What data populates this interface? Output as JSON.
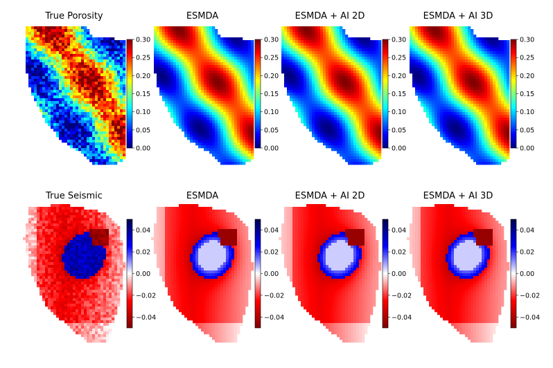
{
  "chart_data": [
    {
      "type": "heatmap",
      "row": "porosity",
      "colormap": "jet",
      "panels": [
        {
          "title": "True Porosity",
          "variant": "noisy"
        },
        {
          "title": "ESMDA",
          "variant": "smooth"
        },
        {
          "title": "ESMDA + AI 2D",
          "variant": "smooth"
        },
        {
          "title": "ESMDA + AI 3D",
          "variant": "smooth"
        }
      ],
      "colorbar": {
        "vmin": 0.0,
        "vmax": 0.3,
        "ticks": [
          "0.00",
          "0.05",
          "0.10",
          "0.15",
          "0.20",
          "0.25",
          "0.30"
        ]
      },
      "colors": [
        "#00007f",
        "#0000ff",
        "#007fff",
        "#00ffff",
        "#7fff7f",
        "#ffff00",
        "#ff7f00",
        "#ff0000",
        "#7f0000"
      ]
    },
    {
      "type": "heatmap",
      "row": "seismic",
      "colormap": "seismic",
      "panels": [
        {
          "title": "True Seismic",
          "variant": "noisy"
        },
        {
          "title": "ESMDA",
          "variant": "smooth"
        },
        {
          "title": "ESMDA + AI 2D",
          "variant": "smooth"
        },
        {
          "title": "ESMDA + AI 3D",
          "variant": "smooth"
        }
      ],
      "colorbar": {
        "vmin": -0.05,
        "vmax": 0.05,
        "ticks": [
          "0.04",
          "0.02",
          "0.00",
          "−0.02",
          "−0.04"
        ]
      },
      "colors": [
        "#7f0000",
        "#ff0000",
        "#ffffff",
        "#0000ff",
        "#00004c"
      ]
    }
  ]
}
